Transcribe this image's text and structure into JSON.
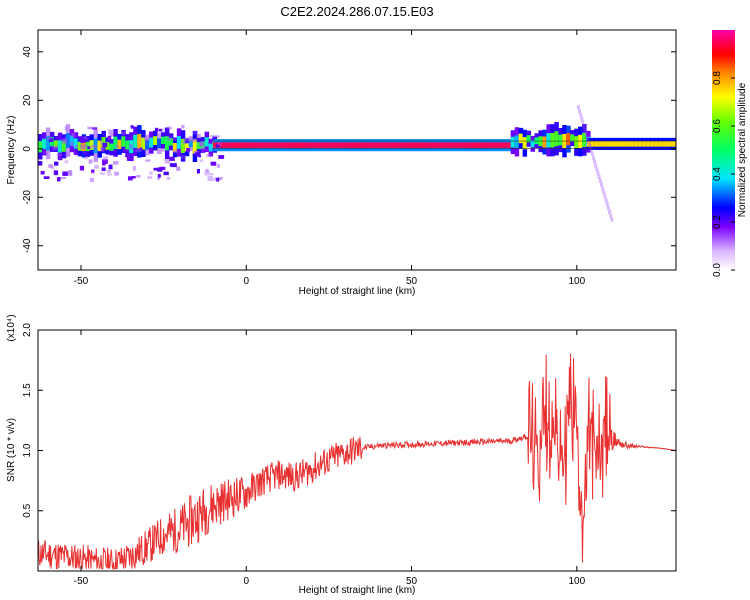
{
  "title": "C2E2.2024.286.07.15.E03",
  "colors": {
    "snr_line": "#e83030",
    "axes": "#000000",
    "ridge_hot": "#ff3030",
    "background": "#ffffff"
  },
  "chart_data": [
    {
      "id": "spectrogram",
      "type": "heatmap",
      "xlabel": "Height of straight line (km)",
      "ylabel": "Frequency (Hz)",
      "xlim": [
        -63,
        130
      ],
      "ylim": [
        -50,
        49
      ],
      "x_ticks": [
        -50,
        0,
        50,
        100
      ],
      "y_ticks": [
        -40,
        -20,
        0,
        20,
        40
      ],
      "colorbar": {
        "label": "Normalized spectral amplitude",
        "range": [
          0.0,
          1.0
        ],
        "ticks": [
          0.0,
          0.2,
          0.4,
          0.6,
          0.8
        ],
        "colormap": "rainbow"
      },
      "ridge_segments": [
        {
          "x_start": -63,
          "x_end": -10,
          "freq": 2,
          "amplitude": 0.45
        },
        {
          "x_start": -10,
          "x_end": 80,
          "freq": 1.5,
          "amplitude": 0.95
        },
        {
          "x_start": 80,
          "x_end": 103,
          "freq": 3,
          "amplitude": 0.5
        },
        {
          "x_start": 103,
          "x_end": 130,
          "freq": 2,
          "amplitude": 0.75
        }
      ]
    },
    {
      "id": "snr",
      "type": "line",
      "xlabel": "Height of straight line (km)",
      "ylabel": "SNR (10 * v/v)",
      "y_multiplier": "(x10⁴)",
      "xlim": [
        -63,
        130
      ],
      "ylim": [
        0.0,
        2.0
      ],
      "x_ticks": [
        -50,
        0,
        50,
        100
      ],
      "y_ticks": [
        0.5,
        1.0,
        1.5,
        2.0
      ],
      "series": [
        {
          "x": [
            -63,
            -55,
            -50,
            -45,
            -40,
            -35,
            -30,
            -25,
            -20,
            -15,
            -10,
            -5,
            0,
            5,
            10,
            15,
            20,
            25,
            30,
            35,
            40,
            50,
            60,
            70,
            80,
            85,
            88,
            90,
            93,
            96,
            98,
            100,
            102,
            104,
            106,
            108,
            110,
            115,
            120,
            125,
            130
          ],
          "values": [
            0.15,
            0.12,
            0.1,
            0.08,
            0.07,
            0.12,
            0.2,
            0.3,
            0.35,
            0.45,
            0.55,
            0.6,
            0.65,
            0.75,
            0.8,
            0.78,
            0.85,
            0.92,
            0.98,
            1.02,
            1.04,
            1.05,
            1.06,
            1.07,
            1.08,
            1.12,
            0.9,
            1.3,
            1.1,
            0.9,
            1.5,
            1.2,
            0.4,
            1.3,
            0.8,
            1.2,
            1.1,
            1.04,
            1.03,
            1.02,
            1.0
          ]
        }
      ]
    }
  ]
}
